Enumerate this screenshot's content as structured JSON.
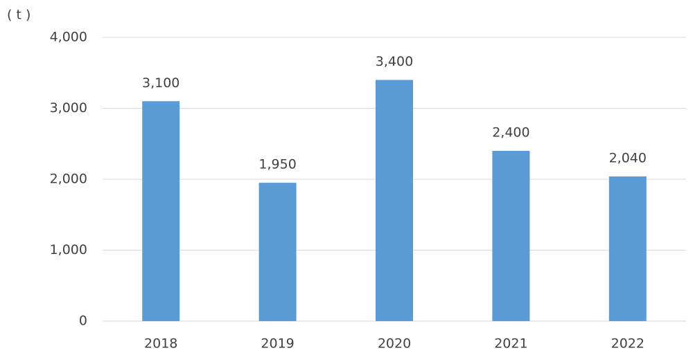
{
  "chart_data": {
    "type": "bar",
    "y_label": "( t )",
    "categories": [
      "2018",
      "2019",
      "2020",
      "2021",
      "2022"
    ],
    "values": [
      3100,
      1950,
      3400,
      2400,
      2040
    ],
    "value_labels": [
      "3,100",
      "1,950",
      "3,400",
      "2,400",
      "2,040"
    ],
    "color": "#5b9bd5",
    "ylim": [
      0,
      4000
    ],
    "yticks": [
      0,
      {
        "value": 1000,
        "label": "1,000"
      },
      {
        "value": 2000,
        "label": "2,000"
      },
      {
        "value": 3000,
        "label": "3,000"
      },
      {
        "value": 4000,
        "label": "4,000"
      }
    ],
    "grid": true
  }
}
